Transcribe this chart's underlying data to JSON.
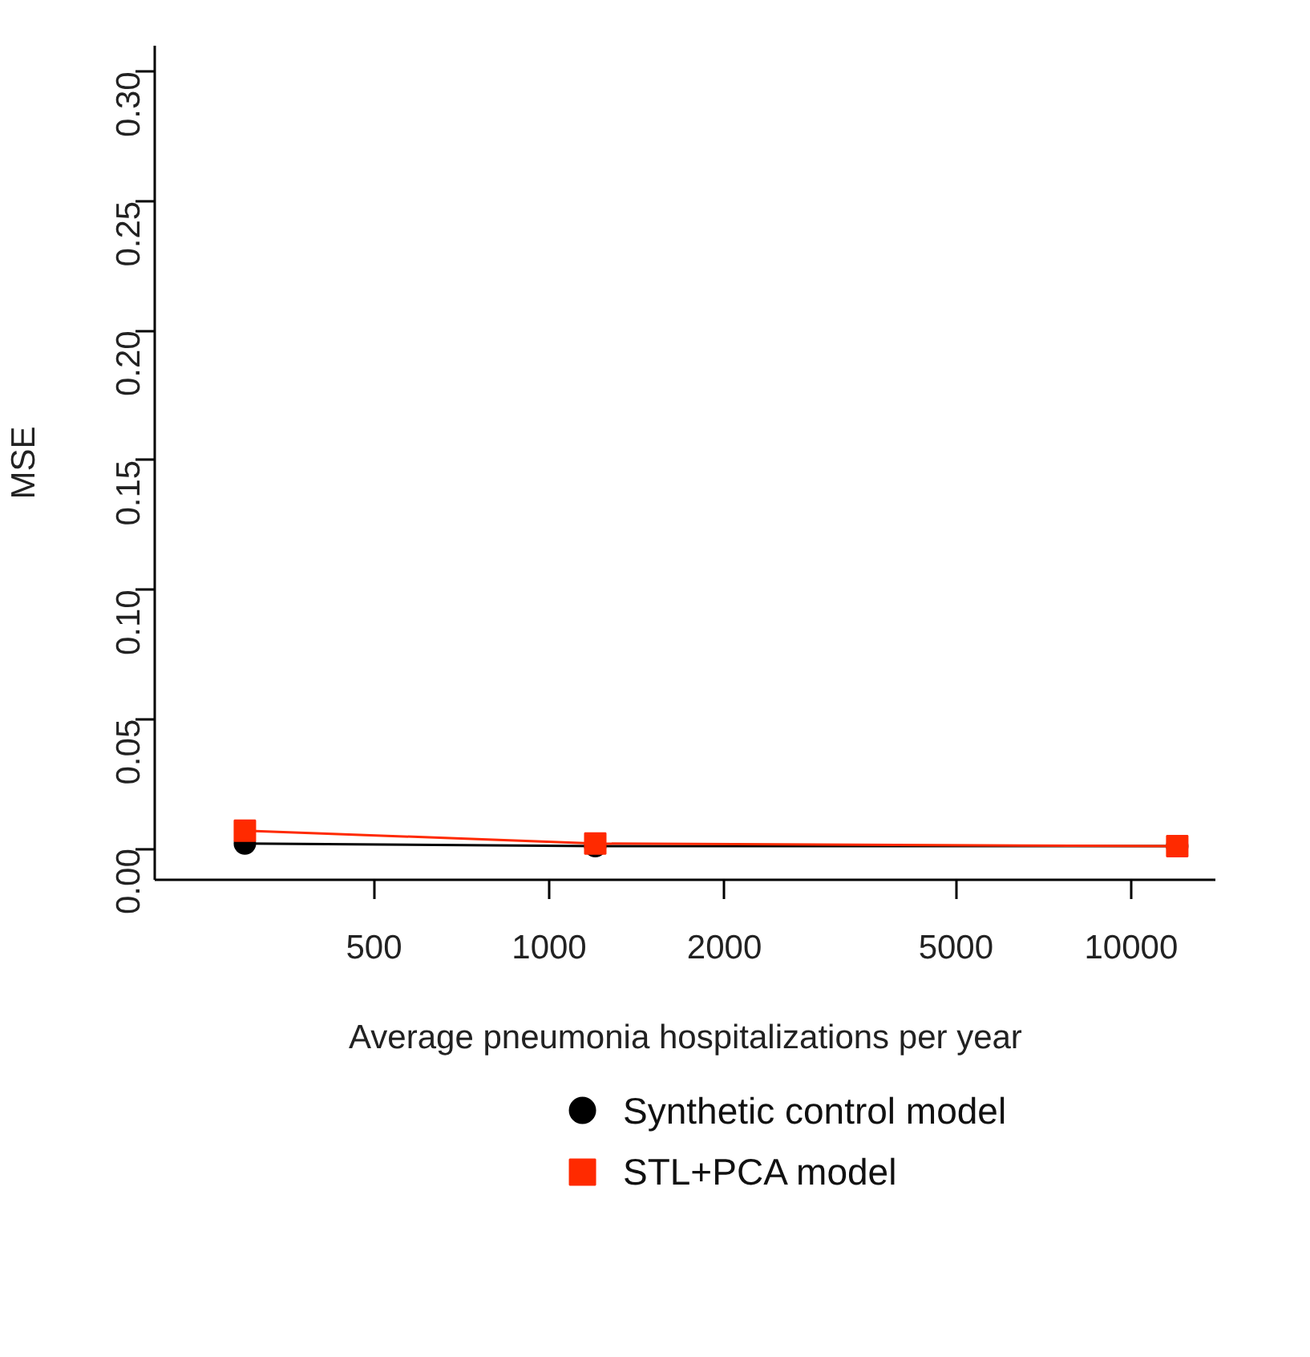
{
  "chart_data": {
    "type": "line",
    "xlabel": "Average pneumonia hospitalizations per year",
    "ylabel": "MSE",
    "log": "x",
    "xlim": [
      210,
      14000
    ],
    "xticks": [
      500,
      1000,
      2000,
      5000,
      10000
    ],
    "ylim": [
      -0.012,
      0.31
    ],
    "yticks": [
      {
        "value": 0,
        "label": "0.00"
      },
      {
        "value": 0.05,
        "label": "0.05"
      },
      {
        "value": 0.1,
        "label": "0.10"
      },
      {
        "value": 0.15,
        "label": "0.15"
      },
      {
        "value": 0.2,
        "label": "0.20"
      },
      {
        "value": 0.25,
        "label": "0.25"
      },
      {
        "value": 0.3,
        "label": "0.30"
      }
    ],
    "x": [
      300,
      1200,
      12000
    ],
    "grid": false,
    "legend": "bottom",
    "series": [
      {
        "name": "Synthetic control model",
        "color": "#000000",
        "values": [
          0.002,
          0.001,
          0.001
        ],
        "marker": "circle"
      },
      {
        "name": "STL+PCA model",
        "color": "#ff2a00",
        "values": [
          0.007,
          0.002,
          0.001
        ],
        "marker": "square"
      }
    ]
  }
}
